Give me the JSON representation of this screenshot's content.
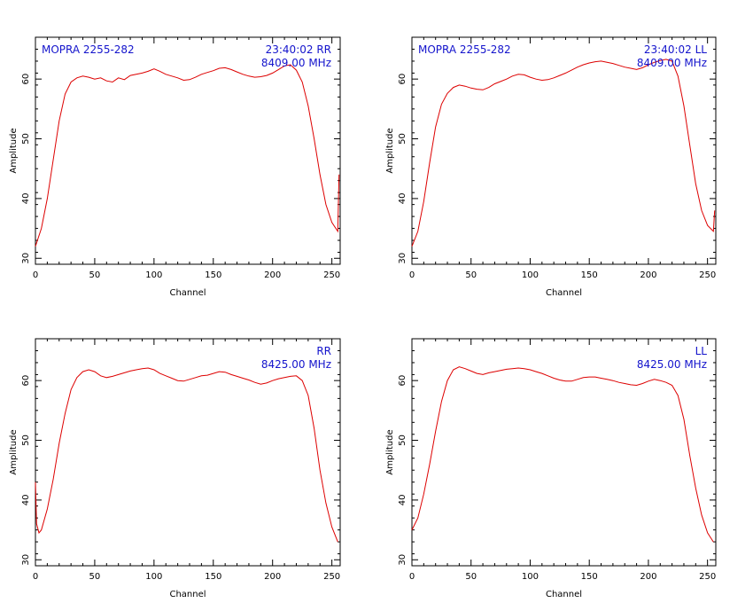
{
  "style": {
    "trace_color": "#dd0000",
    "text_color": "#1414cc",
    "axis_color": "#000000",
    "background": "#ffffff"
  },
  "chart_data": [
    {
      "type": "line",
      "position": "top-left",
      "title_left": "MOPRA 2255-282",
      "title_right_1": "23:40:02  RR",
      "title_right_2": "8409.00  MHz",
      "xlabel": "Channel",
      "ylabel": "Amplitude",
      "xlim": [
        0,
        257
      ],
      "ylim": [
        29,
        67
      ],
      "xticks": [
        0,
        50,
        100,
        150,
        200,
        250
      ],
      "yticks": [
        30,
        40,
        50,
        60
      ],
      "grid": false,
      "series": [
        {
          "x": [
            0,
            5,
            10,
            15,
            20,
            25,
            30,
            35,
            40,
            45,
            50,
            55,
            60,
            65,
            70,
            75,
            80,
            85,
            90,
            95,
            100,
            105,
            110,
            115,
            120,
            125,
            130,
            135,
            140,
            145,
            150,
            155,
            160,
            165,
            170,
            175,
            180,
            185,
            190,
            195,
            200,
            205,
            210,
            215,
            220,
            225,
            230,
            235,
            240,
            245,
            250,
            255,
            256
          ],
          "y": [
            32.0,
            35.0,
            40.0,
            46.5,
            53.0,
            57.5,
            59.5,
            60.2,
            60.5,
            60.3,
            60.0,
            60.2,
            59.7,
            59.5,
            60.2,
            59.9,
            60.6,
            60.8,
            61.0,
            61.3,
            61.7,
            61.3,
            60.8,
            60.5,
            60.2,
            59.8,
            59.9,
            60.3,
            60.8,
            61.1,
            61.4,
            61.8,
            61.9,
            61.6,
            61.2,
            60.8,
            60.5,
            60.3,
            60.4,
            60.6,
            61.0,
            61.6,
            62.2,
            62.4,
            61.5,
            59.5,
            55.5,
            50.0,
            44.0,
            39.0,
            36.0,
            34.5,
            44.0
          ]
        }
      ]
    },
    {
      "type": "line",
      "position": "top-right",
      "title_left": "MOPRA 2255-282",
      "title_right_1": "23:40:02  LL",
      "title_right_2": "8409.00  MHz",
      "xlabel": "Channel",
      "ylabel": "Amplitude",
      "xlim": [
        0,
        257
      ],
      "ylim": [
        29,
        67
      ],
      "xticks": [
        0,
        50,
        100,
        150,
        200,
        250
      ],
      "yticks": [
        30,
        40,
        50,
        60
      ],
      "grid": false,
      "series": [
        {
          "x": [
            0,
            5,
            10,
            15,
            20,
            25,
            30,
            35,
            40,
            45,
            50,
            55,
            60,
            65,
            70,
            75,
            80,
            85,
            90,
            95,
            100,
            105,
            110,
            115,
            120,
            125,
            130,
            135,
            140,
            145,
            150,
            155,
            160,
            165,
            170,
            175,
            180,
            185,
            190,
            195,
            200,
            205,
            210,
            215,
            220,
            225,
            230,
            235,
            240,
            245,
            250,
            255,
            256
          ],
          "y": [
            32.0,
            34.5,
            39.5,
            46.0,
            52.0,
            55.8,
            57.6,
            58.6,
            59.0,
            58.8,
            58.5,
            58.3,
            58.2,
            58.6,
            59.2,
            59.6,
            60.0,
            60.5,
            60.8,
            60.7,
            60.3,
            60.0,
            59.8,
            59.9,
            60.2,
            60.6,
            61.0,
            61.5,
            62.0,
            62.4,
            62.7,
            62.9,
            63.0,
            62.8,
            62.6,
            62.3,
            62.0,
            61.8,
            61.6,
            61.9,
            62.4,
            62.8,
            63.1,
            63.3,
            63.0,
            60.5,
            55.5,
            49.0,
            42.5,
            38.0,
            35.5,
            34.5,
            38.0
          ]
        }
      ]
    },
    {
      "type": "line",
      "position": "bottom-left",
      "title_left": "",
      "title_right_1": "RR",
      "title_right_2": "8425.00  MHz",
      "xlabel": "Channel",
      "ylabel": "Amplitude",
      "xlim": [
        0,
        257
      ],
      "ylim": [
        29,
        67
      ],
      "xticks": [
        0,
        50,
        100,
        150,
        200,
        250
      ],
      "yticks": [
        30,
        40,
        50,
        60
      ],
      "grid": false,
      "series": [
        {
          "x": [
            0,
            1,
            3,
            5,
            10,
            15,
            20,
            25,
            30,
            35,
            40,
            45,
            50,
            55,
            60,
            65,
            70,
            75,
            80,
            85,
            90,
            95,
            100,
            105,
            110,
            115,
            120,
            125,
            130,
            135,
            140,
            145,
            150,
            155,
            160,
            165,
            170,
            175,
            180,
            185,
            190,
            195,
            200,
            205,
            210,
            215,
            220,
            225,
            230,
            235,
            240,
            245,
            250,
            255
          ],
          "y": [
            43.0,
            36.0,
            34.5,
            35.0,
            38.5,
            43.5,
            49.5,
            54.5,
            58.5,
            60.5,
            61.5,
            61.8,
            61.5,
            60.8,
            60.5,
            60.7,
            61.0,
            61.3,
            61.6,
            61.8,
            62.0,
            62.1,
            61.8,
            61.2,
            60.8,
            60.4,
            60.0,
            59.9,
            60.2,
            60.5,
            60.8,
            60.9,
            61.2,
            61.5,
            61.4,
            61.0,
            60.7,
            60.4,
            60.1,
            59.7,
            59.4,
            59.6,
            60.0,
            60.3,
            60.5,
            60.7,
            60.8,
            60.0,
            57.5,
            52.0,
            45.0,
            39.5,
            35.5,
            33.0
          ]
        }
      ]
    },
    {
      "type": "line",
      "position": "bottom-right",
      "title_left": "",
      "title_right_1": "LL",
      "title_right_2": "8425.00  MHz",
      "xlabel": "Channel",
      "ylabel": "Amplitude",
      "xlim": [
        0,
        257
      ],
      "ylim": [
        29,
        67
      ],
      "xticks": [
        0,
        50,
        100,
        150,
        200,
        250
      ],
      "yticks": [
        30,
        40,
        50,
        60
      ],
      "grid": false,
      "series": [
        {
          "x": [
            0,
            5,
            10,
            15,
            20,
            25,
            30,
            35,
            40,
            45,
            50,
            55,
            60,
            65,
            70,
            75,
            80,
            85,
            90,
            95,
            100,
            105,
            110,
            115,
            120,
            125,
            130,
            135,
            140,
            145,
            150,
            155,
            160,
            165,
            170,
            175,
            180,
            185,
            190,
            195,
            200,
            205,
            210,
            215,
            220,
            225,
            230,
            235,
            240,
            245,
            250,
            255
          ],
          "y": [
            35.0,
            37.0,
            41.0,
            46.0,
            51.5,
            56.5,
            60.0,
            61.8,
            62.3,
            62.0,
            61.6,
            61.2,
            61.0,
            61.3,
            61.5,
            61.7,
            61.9,
            62.0,
            62.1,
            62.0,
            61.8,
            61.5,
            61.2,
            60.8,
            60.4,
            60.1,
            59.9,
            59.9,
            60.2,
            60.5,
            60.6,
            60.6,
            60.4,
            60.2,
            60.0,
            59.7,
            59.5,
            59.3,
            59.2,
            59.5,
            59.9,
            60.2,
            60.0,
            59.7,
            59.2,
            57.5,
            53.5,
            47.5,
            42.0,
            37.5,
            34.5,
            33.0
          ]
        }
      ]
    }
  ]
}
